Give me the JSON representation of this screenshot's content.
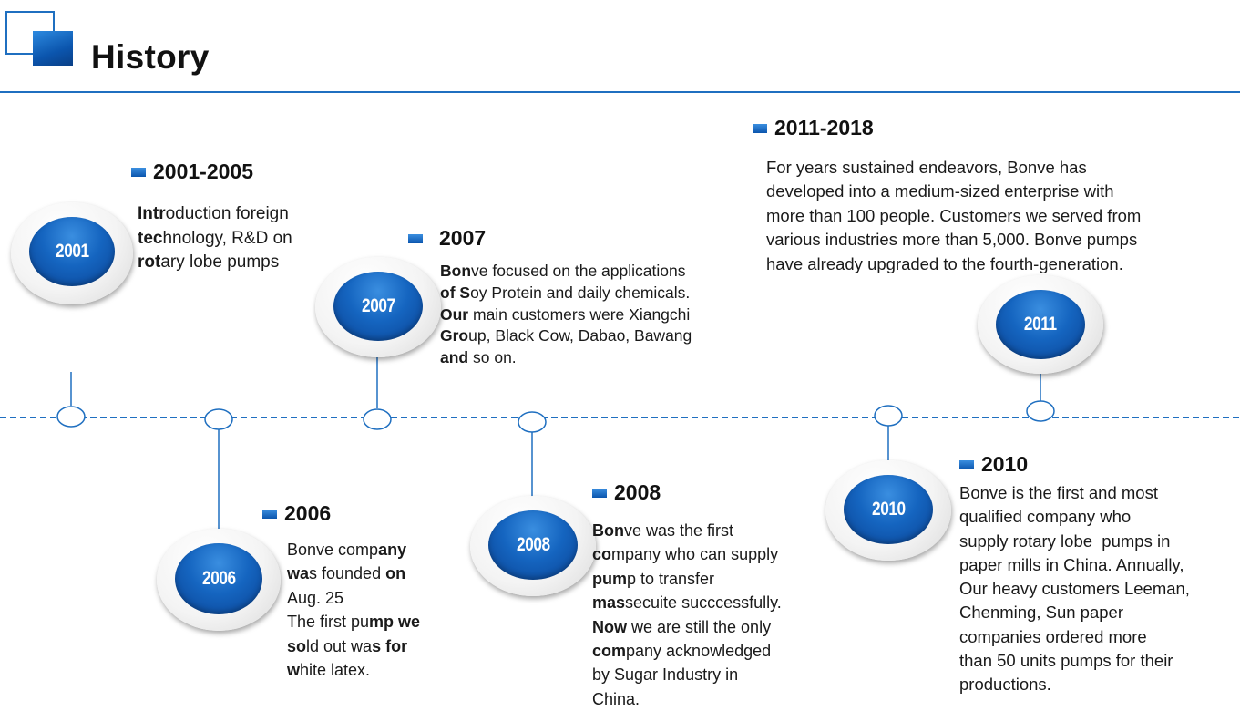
{
  "header": {
    "title": "History"
  },
  "milestones": [
    {
      "badge": "2001",
      "heading": "2001-2005",
      "lines": [
        [
          {
            "b": "Intr"
          },
          {
            "t": "oduction foreign"
          }
        ],
        [
          {
            "b": "tec"
          },
          {
            "t": "hnology, R&D on"
          }
        ],
        [
          {
            "b": "rot"
          },
          {
            "t": "ary lobe pumps"
          }
        ]
      ]
    },
    {
      "badge": "2006",
      "heading": "2006",
      "lines": [
        [
          {
            "t": "Bonve comp"
          },
          {
            "b": "any"
          }
        ],
        [
          {
            "b": "wa"
          },
          {
            "t": "s founded "
          },
          {
            "b": "on"
          }
        ],
        [
          {
            "t": "Aug. 25"
          }
        ],
        [
          {
            "t": "The first pu"
          },
          {
            "b": "mp we"
          }
        ],
        [
          {
            "b": "so"
          },
          {
            "t": "ld out wa"
          },
          {
            "b": "s for"
          }
        ],
        [
          {
            "b": "w"
          },
          {
            "t": "hite latex."
          }
        ]
      ]
    },
    {
      "badge": "2007",
      "heading": "2007",
      "lines": [
        [
          {
            "b": "Bon"
          },
          {
            "t": "ve focused on the applications"
          }
        ],
        [
          {
            "b": "of S"
          },
          {
            "t": "oy Protein and daily chemicals."
          }
        ],
        [
          {
            "b": "Our"
          },
          {
            "t": " main customers were Xiangchi"
          }
        ],
        [
          {
            "b": "Gro"
          },
          {
            "t": "up, Black Cow, Dabao, Bawang"
          }
        ],
        [
          {
            "b": "and"
          },
          {
            "t": " so on."
          }
        ]
      ]
    },
    {
      "badge": "2008",
      "heading": "2008",
      "lines": [
        [
          {
            "b": "Bon"
          },
          {
            "t": "ve was the first"
          }
        ],
        [
          {
            "b": "co"
          },
          {
            "t": "mpany who can supply"
          }
        ],
        [
          {
            "b": "pum"
          },
          {
            "t": "p to transfer"
          }
        ],
        [
          {
            "b": "mas"
          },
          {
            "t": "secuite succcessfully."
          }
        ],
        [
          {
            "b": "Now"
          },
          {
            "t": " we are still the only"
          }
        ],
        [
          {
            "b": "com"
          },
          {
            "t": "pany acknowledged"
          }
        ],
        [
          {
            "t": "by Sugar Industry in"
          }
        ],
        [
          {
            "t": "China."
          }
        ]
      ]
    },
    {
      "badge": "2010",
      "heading": "2010",
      "lines": [
        [
          {
            "t": "Bonve is the first and most"
          }
        ],
        [
          {
            "t": "qualified company who"
          }
        ],
        [
          {
            "t": "supply rotary lobe  pumps in"
          }
        ],
        [
          {
            "t": "paper mills in China. Annually,"
          }
        ],
        [
          {
            "t": "Our heavy customers Leeman,"
          }
        ],
        [
          {
            "t": "Chenming, Sun paper"
          }
        ],
        [
          {
            "t": "companies ordered more"
          }
        ],
        [
          {
            "t": "than 50 units pumps for their"
          }
        ],
        [
          {
            "t": "productions."
          }
        ]
      ]
    },
    {
      "badge": "2011",
      "heading": "2011-2018",
      "lines": [
        [
          {
            "t": "For years sustained endeavors, Bonve has"
          }
        ],
        [
          {
            "t": "developed into a medium-sized enterprise with"
          }
        ],
        [
          {
            "t": "more than 100 people. Customers we served from"
          }
        ],
        [
          {
            "t": "various industries more than 5,000. Bonve pumps"
          }
        ],
        [
          {
            "t": "have already upgraded to the fourth-generation."
          }
        ]
      ]
    }
  ],
  "colors": {
    "accent": "#1f6fc0",
    "disc": "#1565c0"
  }
}
